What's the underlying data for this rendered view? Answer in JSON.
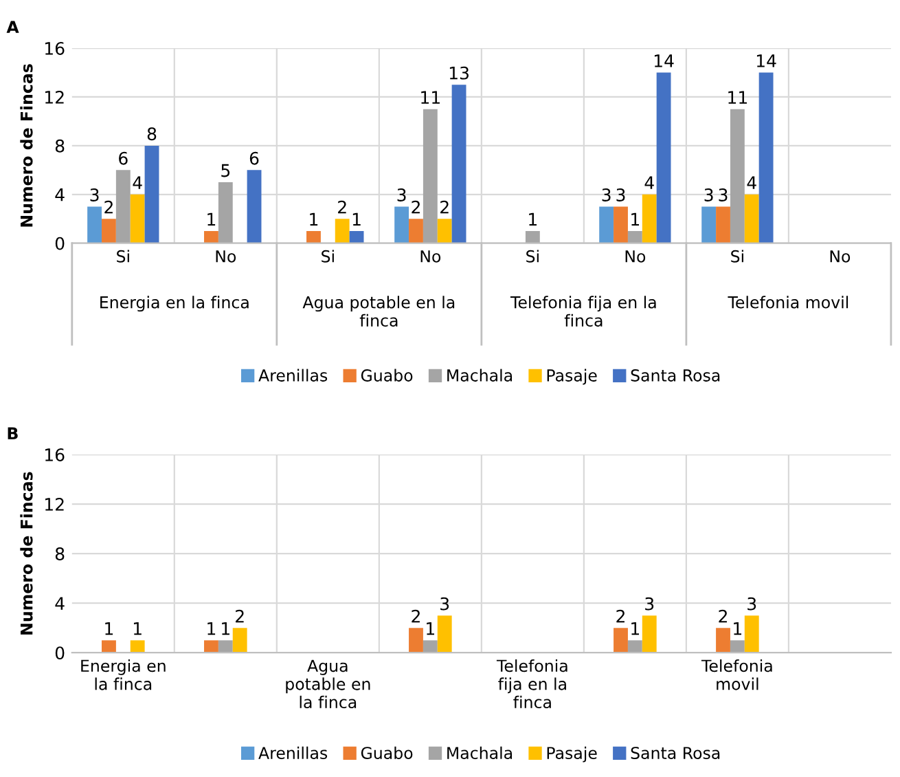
{
  "chart_data": [
    {
      "type": "bar",
      "title": "A",
      "ylabel": "Numero de Fincas",
      "categories": [
        "Si",
        "No",
        "Si",
        "No",
        "Si",
        "No",
        "Si",
        "No"
      ],
      "annotations": [
        "Energia en la finca",
        "Agua potable en la finca",
        "Telefonia fija en la finca",
        "Telefonia movil"
      ],
      "series": [
        {
          "name": "Arenillas",
          "color": "#5b9bd5",
          "values": [
            3,
            null,
            null,
            3,
            null,
            3,
            3,
            null
          ]
        },
        {
          "name": "Guabo",
          "color": "#ed7d31",
          "values": [
            2,
            1,
            1,
            2,
            null,
            3,
            3,
            null
          ]
        },
        {
          "name": "Machala",
          "color": "#a5a5a5",
          "values": [
            6,
            5,
            null,
            11,
            1,
            1,
            11,
            null
          ]
        },
        {
          "name": "Pasaje",
          "color": "#ffc000",
          "values": [
            4,
            null,
            2,
            2,
            null,
            4,
            4,
            null
          ]
        },
        {
          "name": "Santa Rosa",
          "color": "#4472c4",
          "values": [
            8,
            6,
            1,
            13,
            null,
            14,
            14,
            null
          ]
        }
      ],
      "ylim": [
        0,
        16
      ],
      "yticks": [
        0,
        4,
        8,
        12,
        16
      ],
      "grid": true,
      "legend": "bottom",
      "data_labels": true
    },
    {
      "type": "bar",
      "title": "B",
      "ylabel": "Numero de Fincas",
      "categories": [
        "Energia en la finca",
        null,
        "Agua potable en la finca",
        null,
        "Telefonia fija en la finca",
        null,
        "Telefonia movil",
        null
      ],
      "series": [
        {
          "name": "Arenillas",
          "color": "#5b9bd5",
          "values": [
            null,
            null,
            null,
            null,
            null,
            null,
            null,
            null
          ]
        },
        {
          "name": "Guabo",
          "color": "#ed7d31",
          "values": [
            1,
            1,
            null,
            2,
            null,
            2,
            2,
            null
          ]
        },
        {
          "name": "Machala",
          "color": "#a5a5a5",
          "values": [
            null,
            1,
            null,
            1,
            null,
            1,
            1,
            null
          ]
        },
        {
          "name": "Pasaje",
          "color": "#ffc000",
          "values": [
            1,
            2,
            null,
            3,
            null,
            3,
            3,
            null
          ]
        },
        {
          "name": "Santa Rosa",
          "color": "#4472c4",
          "values": [
            null,
            null,
            null,
            null,
            null,
            null,
            null,
            null
          ]
        }
      ],
      "ylim": [
        0,
        16
      ],
      "yticks": [
        0,
        4,
        8,
        12,
        16
      ],
      "grid": true,
      "legend": "bottom",
      "data_labels": true
    }
  ]
}
